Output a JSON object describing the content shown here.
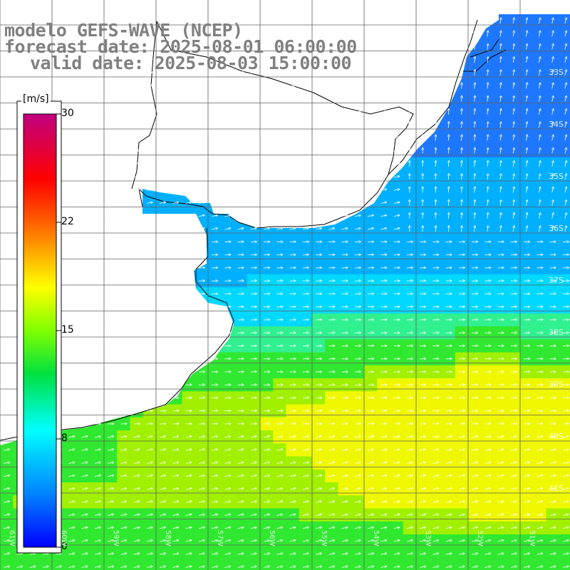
{
  "title": {
    "line1": "modelo GEFS-WAVE (NCEP)",
    "line2": "forecast date: 2025-08-01 06:00:00",
    "line3": "valid date: 2025-08-03 15:00:00"
  },
  "colorbar": {
    "unit": "[m/s]",
    "ticks": [
      "30",
      "22",
      "15",
      "8",
      "0"
    ],
    "colors": [
      "#0000ff",
      "#00a0ff",
      "#00ffff",
      "#00ff80",
      "#00e000",
      "#a0ff00",
      "#ffff00",
      "#ffa000",
      "#ff2000",
      "#c00080"
    ]
  },
  "latitude_labels": [
    "33S",
    "34S",
    "35S",
    "36S",
    "37S",
    "38S",
    "39S",
    "40S",
    "41S"
  ],
  "longitude_labels": [
    "61W",
    "60W",
    "59W",
    "58W",
    "57W",
    "56W",
    "55W",
    "54W",
    "53W",
    "52W",
    "51W"
  ],
  "map": {
    "layer": "wind speed with direction arrows",
    "ocean_colors": {
      "weak": "#1e78ff",
      "moderate": "#00d8ff",
      "strong": "#30e830",
      "very_strong": "#f0f800"
    }
  }
}
